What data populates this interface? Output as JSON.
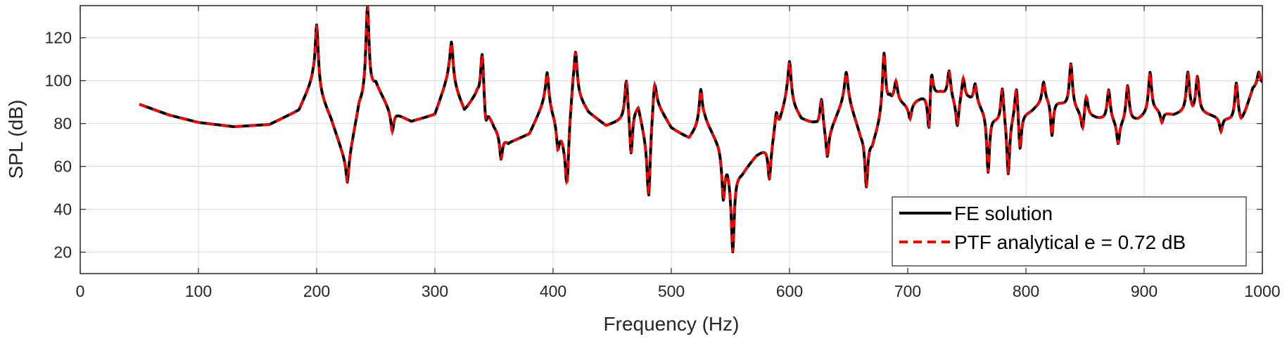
{
  "chart_data": {
    "type": "line",
    "xlabel": "Frequency (Hz)",
    "ylabel": "SPL (dB)",
    "xlim": [
      0,
      1000
    ],
    "ylim": [
      10,
      135
    ],
    "xticks": [
      0,
      100,
      200,
      300,
      400,
      500,
      600,
      700,
      800,
      900,
      1000
    ],
    "yticks": [
      20,
      40,
      60,
      80,
      100,
      120
    ],
    "grid": true,
    "legend_position": "bottom-right",
    "baseline": [
      [
        50,
        89
      ],
      [
        75,
        84
      ],
      [
        100,
        80.5
      ],
      [
        130,
        78.5
      ],
      [
        160,
        79.5
      ],
      [
        185,
        86
      ],
      [
        197,
        100
      ],
      [
        212,
        82
      ],
      [
        226,
        60
      ],
      [
        236,
        88
      ],
      [
        250,
        98
      ],
      [
        262,
        86
      ],
      [
        280,
        81
      ],
      [
        300,
        84
      ],
      [
        312,
        102
      ],
      [
        325,
        86
      ],
      [
        336,
        94
      ],
      [
        350,
        78
      ],
      [
        362,
        71
      ],
      [
        380,
        75
      ],
      [
        393,
        90
      ],
      [
        403,
        80
      ],
      [
        411,
        66
      ],
      [
        417,
        96
      ],
      [
        430,
        85
      ],
      [
        445,
        79
      ],
      [
        460,
        82
      ],
      [
        472,
        88
      ],
      [
        480,
        68
      ],
      [
        487,
        90
      ],
      [
        500,
        78
      ],
      [
        515,
        73
      ],
      [
        528,
        82
      ],
      [
        540,
        70
      ],
      [
        550,
        55
      ],
      [
        560,
        57
      ],
      [
        572,
        65
      ],
      [
        585,
        70
      ],
      [
        598,
        92
      ],
      [
        610,
        82
      ],
      [
        622,
        80
      ],
      [
        632,
        74
      ],
      [
        648,
        93
      ],
      [
        660,
        75
      ],
      [
        670,
        70
      ],
      [
        685,
        92
      ],
      [
        700,
        88
      ],
      [
        712,
        92
      ],
      [
        728,
        95
      ],
      [
        740,
        90
      ],
      [
        752,
        92
      ],
      [
        765,
        86
      ],
      [
        778,
        80
      ],
      [
        790,
        82
      ],
      [
        805,
        86
      ],
      [
        820,
        92
      ],
      [
        835,
        88
      ],
      [
        850,
        84
      ],
      [
        865,
        82
      ],
      [
        880,
        80
      ],
      [
        895,
        82
      ],
      [
        910,
        86
      ],
      [
        925,
        84
      ],
      [
        940,
        86
      ],
      [
        955,
        84
      ],
      [
        970,
        82
      ],
      [
        982,
        80
      ],
      [
        992,
        96
      ],
      [
        1000,
        98
      ]
    ],
    "peaks": [
      [
        170,
        70
      ],
      [
        200,
        126
      ],
      [
        243,
        135
      ],
      [
        314,
        118
      ],
      [
        340,
        114
      ],
      [
        395,
        104
      ],
      [
        419,
        114
      ],
      [
        462,
        102
      ],
      [
        486,
        100
      ],
      [
        525,
        96
      ],
      [
        589,
        86
      ],
      [
        600,
        109
      ],
      [
        627,
        92
      ],
      [
        648,
        104
      ],
      [
        680,
        113
      ],
      [
        690,
        100
      ],
      [
        720,
        109
      ],
      [
        735,
        105
      ],
      [
        747,
        102
      ],
      [
        757,
        99
      ],
      [
        780,
        98
      ],
      [
        792,
        99
      ],
      [
        815,
        100
      ],
      [
        838,
        108
      ],
      [
        851,
        94
      ],
      [
        870,
        96
      ],
      [
        886,
        98
      ],
      [
        905,
        104
      ],
      [
        937,
        104
      ],
      [
        945,
        102
      ],
      [
        978,
        99
      ],
      [
        997,
        104
      ]
    ],
    "dips": [
      [
        226,
        52
      ],
      [
        264,
        76
      ],
      [
        343,
        76
      ],
      [
        356,
        63
      ],
      [
        404,
        67
      ],
      [
        412,
        51
      ],
      [
        466,
        64
      ],
      [
        481,
        44
      ],
      [
        544,
        44
      ],
      [
        552,
        20
      ],
      [
        583,
        53
      ],
      [
        605,
        86
      ],
      [
        632,
        63
      ],
      [
        665,
        50
      ],
      [
        702,
        82
      ],
      [
        718,
        72
      ],
      [
        742,
        78
      ],
      [
        768,
        57
      ],
      [
        785,
        55
      ],
      [
        795,
        65
      ],
      [
        822,
        74
      ],
      [
        848,
        76
      ],
      [
        878,
        70
      ],
      [
        915,
        80
      ],
      [
        965,
        76
      ]
    ],
    "series": [
      {
        "name": "FE solution",
        "color": "#000000",
        "style": "solid"
      },
      {
        "name": "PTF analytical e = 0.72 dB",
        "color": "#ff0000",
        "style": "dashed"
      }
    ]
  }
}
